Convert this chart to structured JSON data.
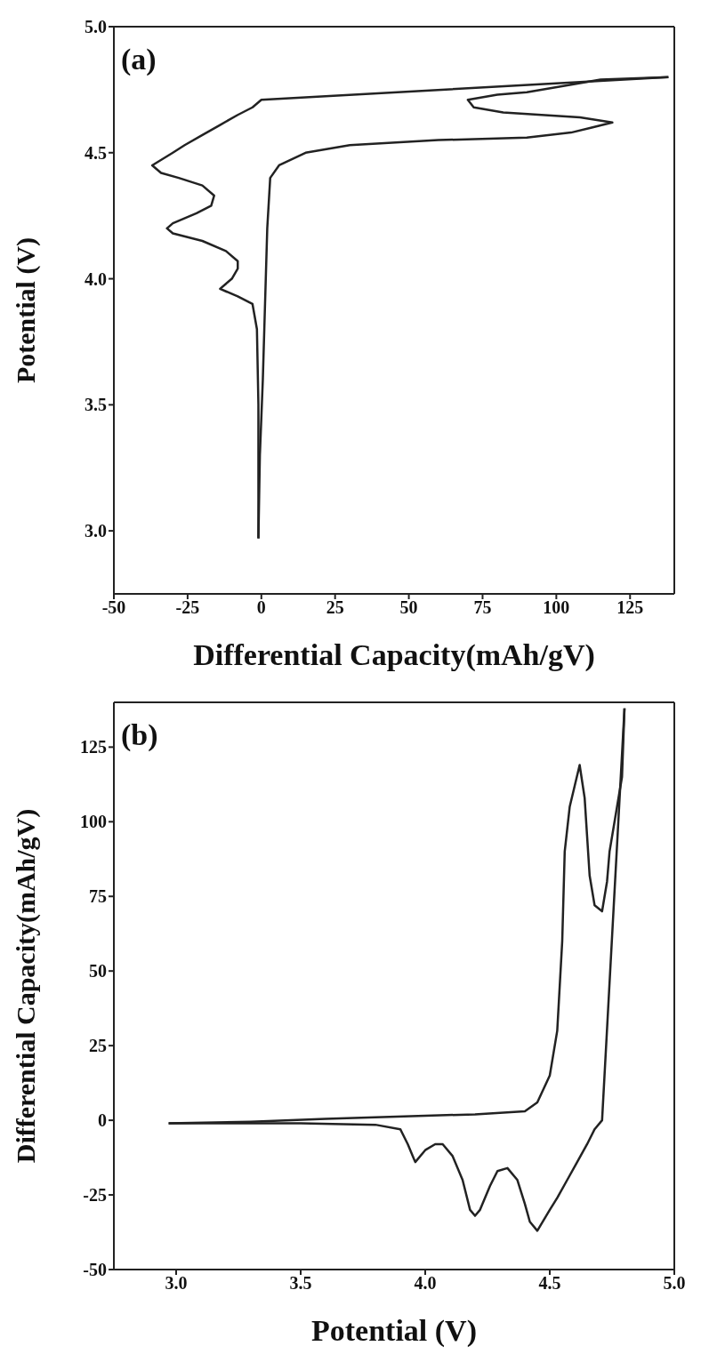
{
  "chart_data": [
    {
      "type": "line",
      "annotations": [
        "(a)"
      ],
      "xlabel": "Differential Capacity(mAh/gV)",
      "ylabel": "Potential (V)",
      "xlim": [
        -50,
        140
      ],
      "ylim": [
        2.75,
        5.0
      ],
      "xticks": [
        -50,
        -25,
        0,
        25,
        50,
        75,
        100,
        125
      ],
      "yticks": [
        {
          "value": 3.0,
          "label": "3.0"
        },
        3.5,
        {
          "value": 4.0,
          "label": "4.0"
        },
        4.5,
        {
          "value": 5.0,
          "label": "5.0"
        }
      ],
      "series": [
        {
          "color": "#222222",
          "x": [
            -1,
            -0.5,
            0.5,
            1,
            1.5,
            2,
            3,
            6,
            15,
            30,
            60,
            90,
            105,
            112,
            119,
            108,
            95,
            82,
            72,
            70,
            80,
            90,
            105,
            115,
            138
          ],
          "values": [
            2.97,
            3.3,
            3.6,
            3.8,
            4.0,
            4.2,
            4.4,
            4.45,
            4.5,
            4.53,
            4.55,
            4.56,
            4.58,
            4.6,
            4.62,
            4.64,
            4.65,
            4.66,
            4.68,
            4.71,
            4.73,
            4.74,
            4.77,
            4.79,
            4.8
          ]
        },
        {
          "color": "#222222",
          "x": [
            -1,
            -1,
            -1.5,
            -3,
            -8,
            -12,
            -14,
            -10,
            -8,
            -8,
            -12,
            -20,
            -30,
            -32,
            -30,
            -22,
            -17,
            -16,
            -20,
            -28,
            -34,
            -37,
            -30,
            -26,
            -20,
            -14,
            -8,
            -3,
            0,
            138
          ],
          "values": [
            2.97,
            3.5,
            3.8,
            3.9,
            3.93,
            3.95,
            3.96,
            4.0,
            4.04,
            4.07,
            4.11,
            4.15,
            4.18,
            4.2,
            4.22,
            4.26,
            4.29,
            4.33,
            4.37,
            4.4,
            4.42,
            4.45,
            4.5,
            4.53,
            4.57,
            4.61,
            4.65,
            4.68,
            4.71,
            4.8
          ]
        }
      ]
    },
    {
      "type": "line",
      "annotations": [
        "(b)"
      ],
      "xlabel": "Potential (V)",
      "ylabel": "Differential Capacity(mAh/gV)",
      "xlim": [
        2.75,
        5.0
      ],
      "ylim": [
        -50,
        140
      ],
      "xticks": [
        {
          "value": 3.0,
          "label": "3.0"
        },
        3.5,
        {
          "value": 4.0,
          "label": "4.0"
        },
        4.5,
        {
          "value": 5.0,
          "label": "5.0"
        }
      ],
      "yticks": [
        -50,
        -25,
        0,
        25,
        50,
        75,
        100,
        125
      ],
      "series": [
        {
          "color": "#222222",
          "x": [
            2.97,
            3.3,
            3.6,
            3.8,
            4.0,
            4.2,
            4.4,
            4.45,
            4.5,
            4.53,
            4.55,
            4.56,
            4.58,
            4.6,
            4.62,
            4.64,
            4.65,
            4.66,
            4.68,
            4.71,
            4.73,
            4.74,
            4.77,
            4.79,
            4.8
          ],
          "values": [
            -1,
            -0.5,
            0.5,
            1,
            1.5,
            2,
            3,
            6,
            15,
            30,
            60,
            90,
            105,
            112,
            119,
            108,
            95,
            82,
            72,
            70,
            80,
            90,
            105,
            115,
            138
          ]
        },
        {
          "color": "#222222",
          "x": [
            2.97,
            3.5,
            3.8,
            3.9,
            3.93,
            3.95,
            3.96,
            4.0,
            4.04,
            4.07,
            4.11,
            4.15,
            4.18,
            4.2,
            4.22,
            4.26,
            4.29,
            4.33,
            4.37,
            4.4,
            4.42,
            4.45,
            4.5,
            4.53,
            4.57,
            4.61,
            4.65,
            4.68,
            4.71,
            4.8
          ],
          "values": [
            -1,
            -1,
            -1.5,
            -3,
            -8,
            -12,
            -14,
            -10,
            -8,
            -8,
            -12,
            -20,
            -30,
            -32,
            -30,
            -22,
            -17,
            -16,
            -20,
            -28,
            -34,
            -37,
            -30,
            -26,
            -20,
            -14,
            -8,
            -3,
            0,
            138
          ]
        }
      ]
    }
  ]
}
